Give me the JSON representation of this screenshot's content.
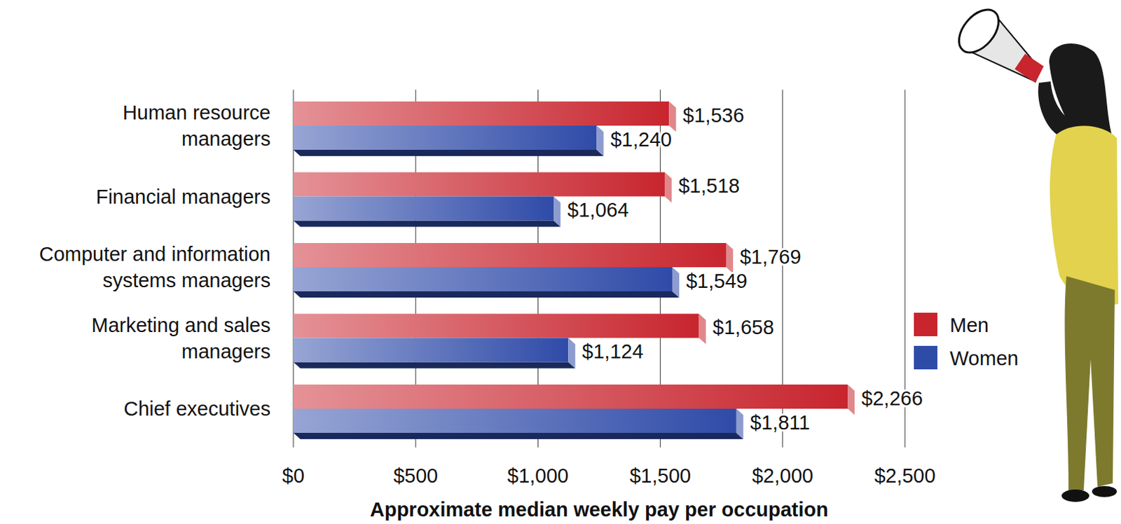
{
  "chart_data": {
    "type": "bar",
    "orientation": "horizontal",
    "xlabel": "Approximate median weekly pay per occupation",
    "categories": [
      "Human resource managers",
      "Financial managers",
      "Computer and information systems managers",
      "Marketing and sales managers",
      "Chief executives"
    ],
    "series": [
      {
        "name": "Men",
        "color": "#c8252e",
        "values": [
          1536,
          1518,
          1769,
          1658,
          2266
        ],
        "value_labels": [
          "$1,536",
          "$1,518",
          "$1,769",
          "$1,658",
          "$2,266"
        ]
      },
      {
        "name": "Women",
        "color": "#2f4ba8",
        "values": [
          1240,
          1064,
          1549,
          1124,
          1811
        ],
        "value_labels": [
          "$1,240",
          "$1,064",
          "$1,549",
          "$1,124",
          "$1,811"
        ]
      }
    ],
    "xlim": [
      0,
      2500
    ],
    "xticks": [
      {
        "value": 0,
        "label": "$0"
      },
      {
        "value": 500,
        "label": "$500"
      },
      {
        "value": 1000,
        "label": "$1,000"
      },
      {
        "value": 1500,
        "label": "$1,500"
      },
      {
        "value": 2000,
        "label": "$2,000"
      },
      {
        "value": 2500,
        "label": "$2,500"
      }
    ],
    "grid": true,
    "legend": "right",
    "data_labels": true
  }
}
